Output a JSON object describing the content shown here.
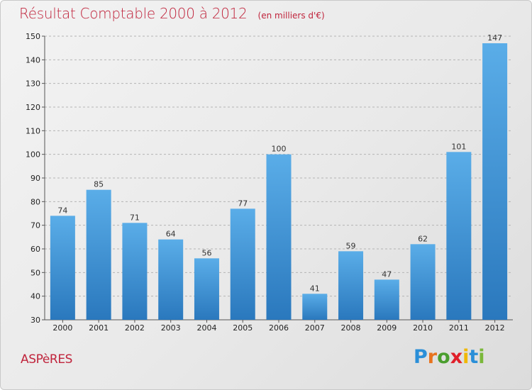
{
  "header": {
    "title": "Résultat Comptable 2000 à 2012",
    "subtitle": "(en milliers d'€)"
  },
  "footer": {
    "commune": "ASPèRES",
    "brand": "Proxiti",
    "brand_colors": [
      "#2a8fd8",
      "#e8731e",
      "#4a9e2e",
      "#e01f2a",
      "#f0b800",
      "#2a8fd8",
      "#7ab83a"
    ]
  },
  "colors": {
    "bar_top": "#5aade8",
    "bar_bottom": "#2a78bd",
    "title": "#c0243c",
    "grid": "#b4b4b4"
  },
  "chart_data": {
    "type": "bar",
    "categories": [
      "2000",
      "2001",
      "2002",
      "2003",
      "2004",
      "2005",
      "2006",
      "2007",
      "2008",
      "2009",
      "2010",
      "2011",
      "2012"
    ],
    "values": [
      74,
      85,
      71,
      64,
      56,
      77,
      100,
      41,
      59,
      47,
      62,
      101,
      147
    ],
    "ylim": [
      30,
      150
    ],
    "yticks": [
      30,
      40,
      50,
      60,
      70,
      80,
      90,
      100,
      110,
      120,
      130,
      140,
      150
    ],
    "grid": true,
    "grid_style": "dashed-horizontal"
  }
}
